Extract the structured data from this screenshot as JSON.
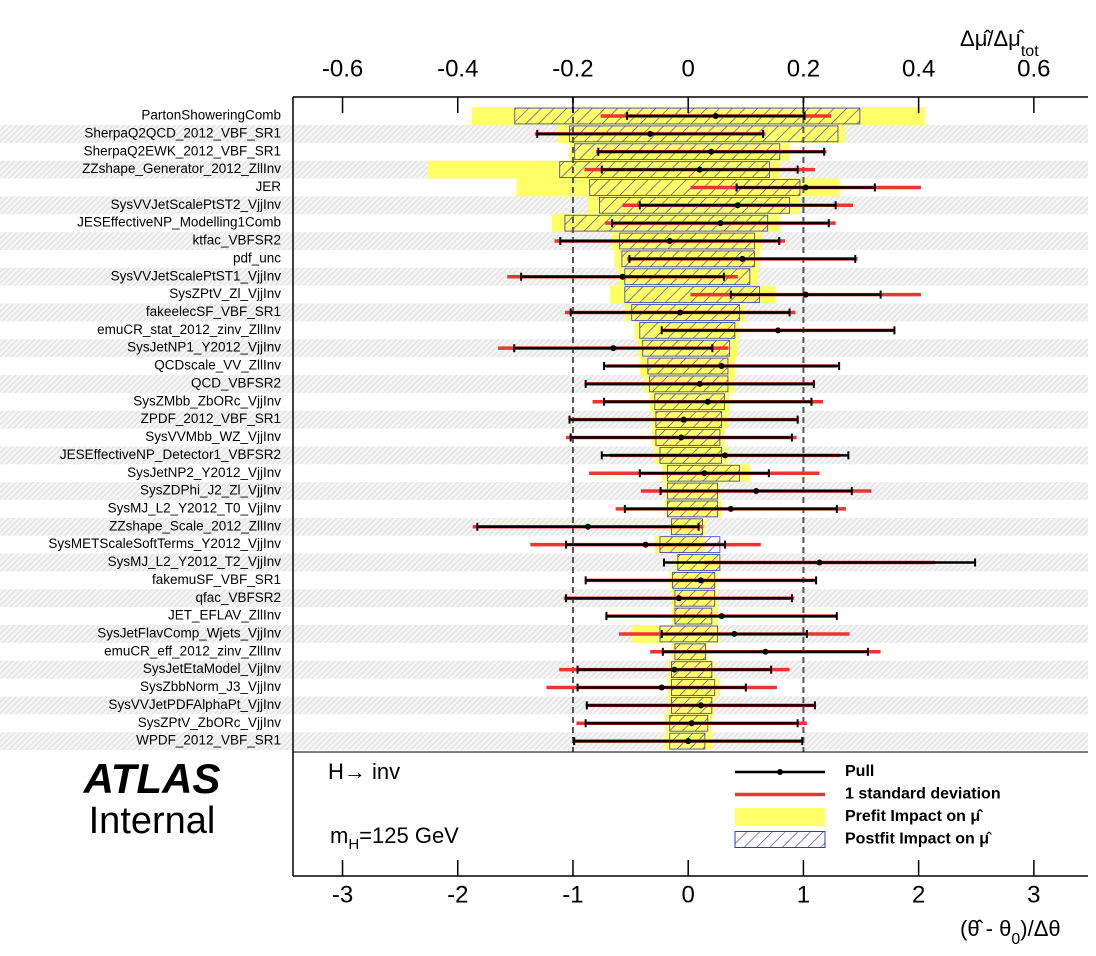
{
  "chart_data": {
    "type": "ranking",
    "categories": [
      "PartonShoweringComb",
      "SherpaQ2QCD_2012_VBF_SR1",
      "SherpaQ2EWK_2012_VBF_SR1",
      "ZZshape_Generator_2012_ZllInv",
      "JER",
      "SysVVJetScalePtST2_VjjInv",
      "JESEffectiveNP_Modelling1Comb",
      "ktfac_VBFSR2",
      "pdf_unc",
      "SysVVJetScalePtST1_VjjInv",
      "SysZPtV_Zl_VjjInv",
      "fakeelecSF_VBF_SR1",
      "emuCR_stat_2012_zinv_ZllInv",
      "SysJetNP1_Y2012_VjjInv",
      "QCDscale_VV_ZllInv",
      "QCD_VBFSR2",
      "SysZMbb_ZbORc_VjjInv",
      "ZPDF_2012_VBF_SR1",
      "SysVVMbb_WZ_VjjInv",
      "JESEffectiveNP_Detector1_VBFSR2",
      "SysJetNP2_Y2012_VjjInv",
      "SysZDPhi_J2_Zl_VjjInv",
      "SysMJ_L2_Y2012_T0_VjjInv",
      "ZZshape_Scale_2012_ZllInv",
      "SysMETScaleSoftTerms_Y2012_VjjInv",
      "SysMJ_L2_Y2012_T2_VjjInv",
      "fakemuSF_VBF_SR1",
      "qfac_VBFSR2",
      "JET_EFLAV_ZllInv",
      "SysJetFlavComp_Wjets_VjjInv",
      "emuCR_eff_2012_zinv_ZllInv",
      "SysJetEtaModel_VjjInv",
      "SysZbbNorm_J3_VjjInv",
      "SysVVJetPDFAlphaPt_VjjInv",
      "SysZPtV_ZbORc_VjjInv",
      "WPDF_2012_VBF_SR1"
    ],
    "series": [
      {
        "name": "Pull",
        "color": "#000000",
        "values": [
          0.24,
          -0.33,
          0.2,
          0.1,
          1.02,
          0.43,
          0.28,
          -0.16,
          0.47,
          -0.57,
          1.02,
          -0.07,
          0.78,
          -0.65,
          0.29,
          0.1,
          0.17,
          -0.04,
          -0.06,
          0.32,
          0.14,
          0.59,
          0.37,
          -0.87,
          -0.37,
          1.14,
          0.11,
          -0.08,
          0.29,
          0.4,
          0.67,
          -0.12,
          -0.23,
          0.11,
          0.03,
          0.0
        ],
        "errors": [
          0.77,
          0.98,
          0.98,
          0.85,
          0.6,
          0.85,
          0.94,
          0.95,
          0.98,
          0.88,
          0.65,
          0.95,
          1.01,
          0.86,
          1.02,
          0.99,
          0.9,
          0.99,
          0.96,
          1.07,
          0.56,
          0.83,
          0.92,
          0.96,
          0.69,
          1.35,
          1.0,
          0.98,
          1.0,
          0.63,
          0.89,
          0.84,
          0.73,
          0.99,
          0.92,
          0.99
        ]
      },
      {
        "name": "1 standard deviation",
        "color": "#ee3333",
        "values": [
          1,
          1,
          1,
          1,
          1,
          1,
          1,
          1,
          1,
          1,
          1,
          1,
          1,
          1,
          1,
          1,
          1,
          1,
          1,
          1,
          1,
          1,
          1,
          1,
          1,
          1,
          1,
          1,
          1,
          1,
          1,
          1,
          1,
          1,
          1,
          1
        ]
      },
      {
        "name": "Prefit Impact on μ̂",
        "color": "#ffff66",
        "axis": "x2",
        "values": [
          [
            -0.376,
            0.411
          ],
          [
            -0.227,
            0.272
          ],
          [
            -0.206,
            0.176
          ],
          [
            -0.452,
            0.159
          ],
          [
            -0.298,
            0.263
          ],
          [
            -0.174,
            0.194
          ],
          [
            -0.237,
            0.159
          ],
          [
            -0.133,
            0.128
          ],
          [
            -0.128,
            0.124
          ],
          [
            -0.122,
            0.121
          ],
          [
            -0.136,
            0.152
          ],
          [
            -0.11,
            0.098
          ],
          [
            -0.093,
            0.089
          ],
          [
            -0.088,
            0.086
          ],
          [
            -0.084,
            0.081
          ],
          [
            -0.076,
            0.081
          ],
          [
            -0.067,
            0.072
          ],
          [
            -0.063,
            0.069
          ],
          [
            -0.063,
            0.063
          ],
          [
            -0.058,
            0.069
          ],
          [
            -0.046,
            0.107
          ],
          [
            -0.041,
            0.055
          ],
          [
            -0.041,
            0.058
          ],
          [
            -0.032,
            0.03
          ],
          [
            -0.058,
            0.029
          ],
          [
            -0.023,
            0.055
          ],
          [
            -0.032,
            0.051
          ],
          [
            -0.029,
            0.051
          ],
          [
            -0.029,
            0.051
          ],
          [
            -0.098,
            0.055
          ],
          [
            -0.029,
            0.034
          ],
          [
            -0.036,
            0.046
          ],
          [
            -0.036,
            0.055
          ],
          [
            -0.036,
            0.046
          ],
          [
            -0.041,
            0.041
          ],
          [
            -0.041,
            0.041
          ]
        ]
      },
      {
        "name": "Postfit Impact on μ̂",
        "color": "#3333cc",
        "axis": "x2",
        "values": [
          [
            -0.301,
            0.298
          ],
          [
            -0.206,
            0.26
          ],
          [
            -0.197,
            0.159
          ],
          [
            -0.223,
            0.141
          ],
          [
            -0.171,
            0.194
          ],
          [
            -0.154,
            0.176
          ],
          [
            -0.214,
            0.138
          ],
          [
            -0.119,
            0.115
          ],
          [
            -0.115,
            0.115
          ],
          [
            -0.11,
            0.107
          ],
          [
            -0.11,
            0.124
          ],
          [
            -0.098,
            0.089
          ],
          [
            -0.084,
            0.081
          ],
          [
            -0.079,
            0.072
          ],
          [
            -0.07,
            0.069
          ],
          [
            -0.067,
            0.069
          ],
          [
            -0.058,
            0.063
          ],
          [
            -0.056,
            0.058
          ],
          [
            -0.056,
            0.055
          ],
          [
            -0.049,
            0.058
          ],
          [
            -0.036,
            0.089
          ],
          [
            -0.036,
            0.051
          ],
          [
            -0.036,
            0.051
          ],
          [
            -0.029,
            0.025
          ],
          [
            -0.049,
            0.055
          ],
          [
            -0.018,
            0.055
          ],
          [
            -0.027,
            0.046
          ],
          [
            -0.023,
            0.046
          ],
          [
            -0.023,
            0.041
          ],
          [
            -0.049,
            0.051
          ],
          [
            -0.023,
            0.03
          ],
          [
            -0.029,
            0.041
          ],
          [
            -0.029,
            0.046
          ],
          [
            -0.029,
            0.041
          ],
          [
            -0.032,
            0.034
          ],
          [
            -0.032,
            0.029
          ]
        ]
      }
    ],
    "xlim": [
      -3.43,
      3.47
    ],
    "xticks": [
      -3,
      -2,
      -1,
      0,
      1,
      2,
      3
    ],
    "x2lim": [
      -0.686,
      0.694
    ],
    "x2ticks": [
      -0.6,
      -0.4,
      -0.2,
      0,
      0.2,
      0.4,
      0.6
    ],
    "ref_lines": [
      -1,
      1
    ],
    "xlabel_parts": [
      "(θ̂ - θ",
      "0",
      ")/Δθ"
    ],
    "x2label_parts": [
      "Δμ̂/Δμ̂",
      "tot"
    ],
    "experiment": "ATLAS",
    "status": "Internal",
    "annotations": [
      "H→ inv"
    ],
    "mass_parts": [
      "m",
      "H",
      "=125 GeV"
    ],
    "legend": "lower right"
  }
}
